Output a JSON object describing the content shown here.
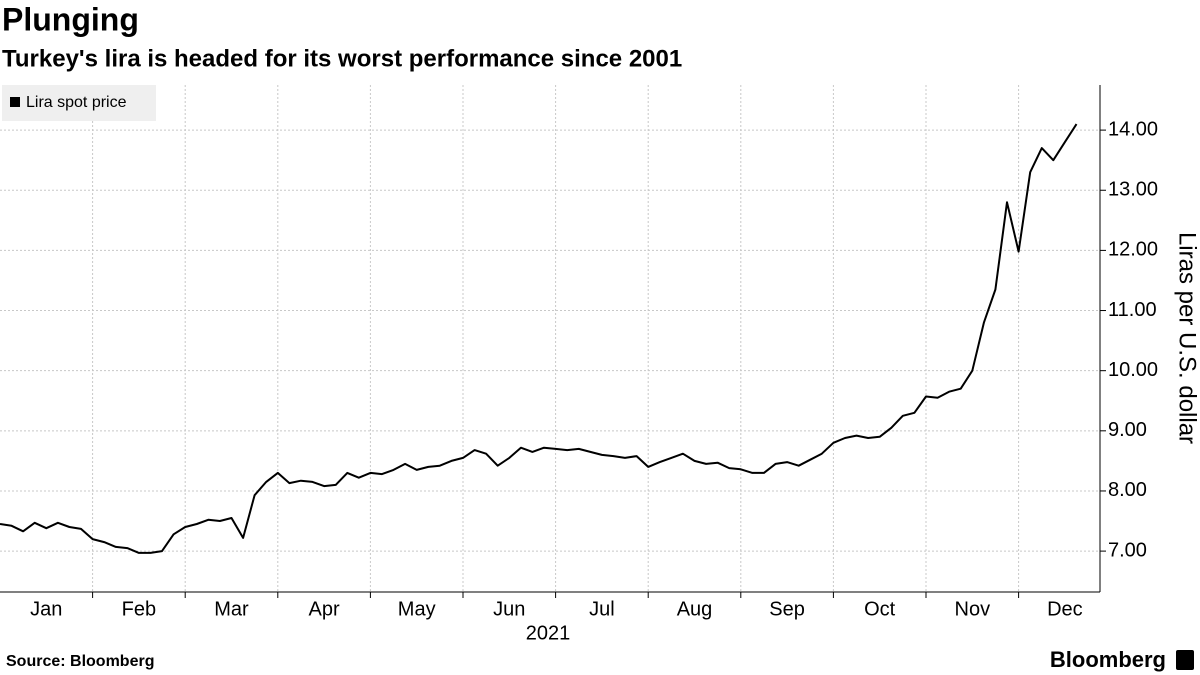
{
  "chart_data": {
    "type": "line",
    "title": "Plunging",
    "subtitle": "Turkey's lira is headed for its worst performance since 2001",
    "source": "Source: Bloomberg",
    "brand": "Bloomberg",
    "xlabel": "2021",
    "ylabel": "Liras per U.S. dollar",
    "categories": [
      null,
      null,
      null,
      null,
      "Jan",
      null,
      null,
      null,
      null,
      null,
      null,
      null,
      "Feb",
      null,
      null,
      null,
      null,
      null,
      null,
      null,
      "Mar",
      null,
      null,
      null,
      null,
      null,
      null,
      null,
      "Apr",
      null,
      null,
      null,
      null,
      null,
      null,
      null,
      "May",
      null,
      null,
      null,
      null,
      null,
      null,
      null,
      "Jun",
      null,
      null,
      null,
      null,
      null,
      null,
      null,
      "Jul",
      null,
      null,
      null,
      null,
      null,
      null,
      null,
      "Aug",
      null,
      null,
      null,
      null,
      null,
      null,
      null,
      "Sep",
      null,
      null,
      null,
      null,
      null,
      null,
      null,
      "Oct",
      null,
      null,
      null,
      null,
      null,
      null,
      null,
      "Nov",
      null,
      null,
      null,
      null,
      null,
      null,
      null,
      "Dec",
      null
    ],
    "series": [
      {
        "name": "Lira spot price",
        "color": "#000000",
        "values": [
          7.45,
          7.42,
          7.33,
          7.47,
          7.38,
          7.47,
          7.4,
          7.37,
          7.2,
          7.15,
          7.07,
          7.05,
          6.97,
          6.97,
          7.0,
          7.28,
          7.4,
          7.45,
          7.52,
          7.5,
          7.55,
          7.22,
          7.93,
          8.15,
          8.3,
          8.13,
          8.17,
          8.15,
          8.08,
          8.1,
          8.3,
          8.22,
          8.3,
          8.28,
          8.35,
          8.45,
          8.35,
          8.4,
          8.42,
          8.5,
          8.55,
          8.68,
          8.62,
          8.42,
          8.55,
          8.72,
          8.65,
          8.72,
          8.7,
          8.68,
          8.7,
          8.65,
          8.6,
          8.58,
          8.55,
          8.58,
          8.4,
          8.48,
          8.55,
          8.62,
          8.5,
          8.45,
          8.47,
          8.38,
          8.36,
          8.3,
          8.3,
          8.45,
          8.48,
          8.42,
          8.52,
          8.62,
          8.8,
          8.88,
          8.92,
          8.88,
          8.9,
          9.05,
          9.25,
          9.3,
          9.57,
          9.55,
          9.65,
          9.7,
          10.0,
          10.8,
          11.35,
          12.8,
          11.98,
          13.3,
          13.7,
          13.5,
          13.8,
          14.1
        ]
      }
    ],
    "ylim": [
      6.32,
      14.75
    ],
    "yticks": [
      {
        "value": 7,
        "label": "7.00"
      },
      {
        "value": 8,
        "label": "8.00"
      },
      {
        "value": 9,
        "label": "9.00"
      },
      {
        "value": 10,
        "label": "10.00"
      },
      {
        "value": 11,
        "label": "11.00"
      },
      {
        "value": 12,
        "label": "12.00"
      },
      {
        "value": 13,
        "label": "13.00"
      },
      {
        "value": 14,
        "label": "14.00"
      }
    ],
    "grid": true,
    "legend": "top-left"
  }
}
